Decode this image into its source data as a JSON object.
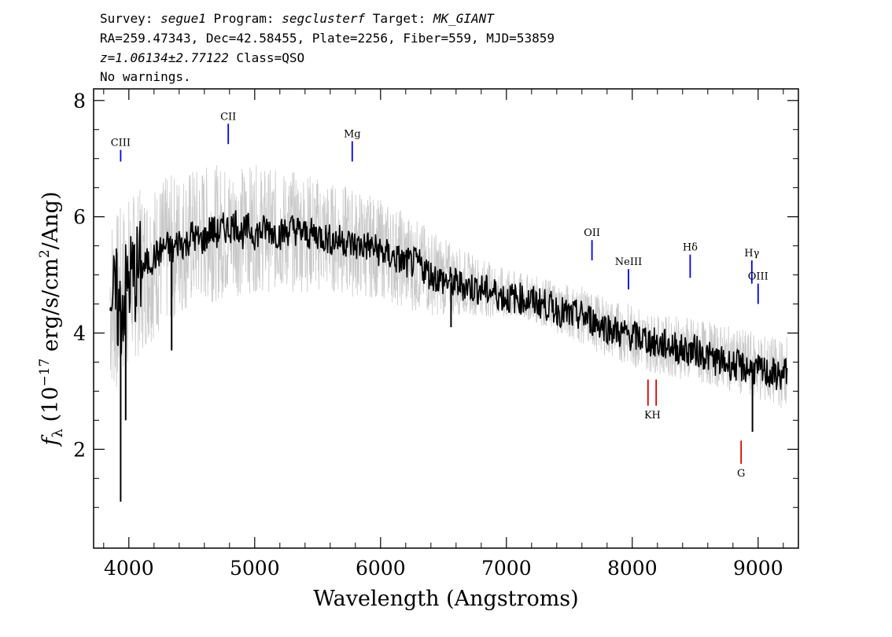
{
  "header": {
    "line1": [
      {
        "text": "Survey: ",
        "italic": false
      },
      {
        "text": "segue1",
        "italic": true
      },
      {
        "text": " Program: ",
        "italic": false
      },
      {
        "text": "segclusterf",
        "italic": true
      },
      {
        "text": " Target: ",
        "italic": false
      },
      {
        "text": "MK_GIANT",
        "italic": true
      }
    ],
    "line2": "RA=259.47343, Dec=42.58455, Plate=2256, Fiber=559, MJD=53859",
    "line3": [
      {
        "text": "z=1.06134±2.77122",
        "italic": true
      },
      {
        "text": " Class=QSO",
        "italic": false
      }
    ],
    "line4": "No warnings."
  },
  "chart_data": {
    "type": "line",
    "xlabel": "Wavelength (Angstroms)",
    "ylabel_parts": {
      "f": "f",
      "sub": "λ",
      "pre": " (10",
      "exp": "−17",
      "mid": " erg/s/cm",
      "exp2": "2",
      "post": "/Ang)"
    },
    "xlim": [
      3720,
      9320
    ],
    "ylim": [
      0.3,
      8.2
    ],
    "xticks": [
      4000,
      5000,
      6000,
      7000,
      8000,
      9000
    ],
    "yticks": [
      2,
      4,
      6,
      8
    ],
    "grid": false,
    "series": [
      {
        "role": "flux",
        "color": "#000000",
        "x": [
          3850,
          3875,
          3900,
          3925,
          3950,
          3975,
          4000,
          4050,
          4100,
          4150,
          4200,
          4250,
          4300,
          4350,
          4400,
          4450,
          4500,
          4550,
          4600,
          4650,
          4700,
          4750,
          4800,
          4850,
          4900,
          4950,
          5000,
          5100,
          5200,
          5300,
          5400,
          5500,
          5600,
          5700,
          5800,
          5900,
          6000,
          6100,
          6200,
          6300,
          6400,
          6500,
          6600,
          6700,
          6800,
          6900,
          7000,
          7100,
          7200,
          7300,
          7400,
          7500,
          7600,
          7700,
          7800,
          7900,
          8000,
          8100,
          8200,
          8300,
          8400,
          8500,
          8600,
          8700,
          8800,
          8900,
          9000,
          9100,
          9200,
          9230
        ],
        "y": [
          4.9,
          4.5,
          4.6,
          4.3,
          4.5,
          4.7,
          4.9,
          5.0,
          5.1,
          5.2,
          5.3,
          5.4,
          5.5,
          5.4,
          5.6,
          5.5,
          5.7,
          5.6,
          5.6,
          5.8,
          5.7,
          5.8,
          5.8,
          5.9,
          5.7,
          5.8,
          5.7,
          5.8,
          5.7,
          5.8,
          5.7,
          5.7,
          5.6,
          5.6,
          5.5,
          5.5,
          5.4,
          5.3,
          5.2,
          5.2,
          5.0,
          4.9,
          4.85,
          4.8,
          4.75,
          4.7,
          4.6,
          4.6,
          4.55,
          4.5,
          4.4,
          4.3,
          4.3,
          4.2,
          4.1,
          4.0,
          3.95,
          3.9,
          3.8,
          3.8,
          3.7,
          3.7,
          3.6,
          3.5,
          3.45,
          3.4,
          3.35,
          3.3,
          3.25,
          3.4
        ]
      },
      {
        "role": "error_envelope",
        "color": "#c8c8c8",
        "x": [
          3850,
          3900,
          4000,
          4200,
          4400,
          4600,
          4800,
          5000,
          5200,
          5400,
          5600,
          5800,
          6000,
          6200,
          6400,
          6600,
          6800,
          7000,
          7200,
          7400,
          7600,
          7800,
          8000,
          8200,
          8400,
          8600,
          8800,
          9000,
          9200,
          9230
        ],
        "upper": [
          6.2,
          6.1,
          6.4,
          6.6,
          6.8,
          6.9,
          6.9,
          6.9,
          6.8,
          6.8,
          6.6,
          6.5,
          6.3,
          6.1,
          5.8,
          5.5,
          5.3,
          5.1,
          5.0,
          4.9,
          4.8,
          4.6,
          4.5,
          4.3,
          4.3,
          4.2,
          4.1,
          4.0,
          3.9,
          4.0
        ],
        "lower": [
          3.0,
          2.9,
          3.4,
          3.9,
          4.3,
          4.5,
          4.6,
          4.7,
          4.7,
          4.7,
          4.7,
          4.6,
          4.6,
          4.4,
          4.3,
          4.3,
          4.3,
          4.2,
          4.2,
          4.0,
          3.8,
          3.6,
          3.4,
          3.3,
          3.2,
          3.1,
          3.0,
          2.8,
          2.7,
          2.8
        ]
      }
    ],
    "spikes": [
      {
        "x": 3935,
        "y": 1.1
      },
      {
        "x": 3975,
        "y": 2.5
      },
      {
        "x": 4340,
        "y": 3.7
      },
      {
        "x": 6560,
        "y": 4.1
      },
      {
        "x": 8955,
        "y": 2.3
      }
    ],
    "line_markers": [
      {
        "label": "CIII",
        "x": 3935,
        "y0": 6.95,
        "y1": 7.15,
        "color": "#0000ee",
        "label_side": "above"
      },
      {
        "label": "CII",
        "x": 4790,
        "y0": 7.25,
        "y1": 7.6,
        "color": "#0000ee",
        "label_side": "above"
      },
      {
        "label": "Mg",
        "x": 5775,
        "y0": 6.95,
        "y1": 7.3,
        "color": "#0000ee",
        "label_side": "above"
      },
      {
        "label": "OII",
        "x": 7680,
        "y0": 5.25,
        "y1": 5.6,
        "color": "#0000ee",
        "label_side": "above"
      },
      {
        "label": "NeIII",
        "x": 7970,
        "y0": 4.75,
        "y1": 5.1,
        "color": "#0000ee",
        "label_side": "above"
      },
      {
        "label": "Hδ",
        "x": 8460,
        "y0": 4.95,
        "y1": 5.35,
        "color": "#0000ee",
        "label_side": "above"
      },
      {
        "label": "Hγ",
        "x": 8950,
        "y0": 4.85,
        "y1": 5.25,
        "color": "#0000ee",
        "label_side": "above"
      },
      {
        "label": "OIII",
        "x": 9000,
        "y0": 4.5,
        "y1": 4.85,
        "color": "#0000ee",
        "label_side": "above"
      },
      {
        "label": "K",
        "x": 8125,
        "y0": 2.75,
        "y1": 3.2,
        "color": "#dd0000",
        "label_side": "below"
      },
      {
        "label": "H",
        "x": 8190,
        "y0": 2.75,
        "y1": 3.2,
        "color": "#dd0000",
        "label_side": "below"
      },
      {
        "label": "G",
        "x": 8865,
        "y0": 1.75,
        "y1": 2.15,
        "color": "#dd0000",
        "label_side": "below"
      }
    ]
  }
}
